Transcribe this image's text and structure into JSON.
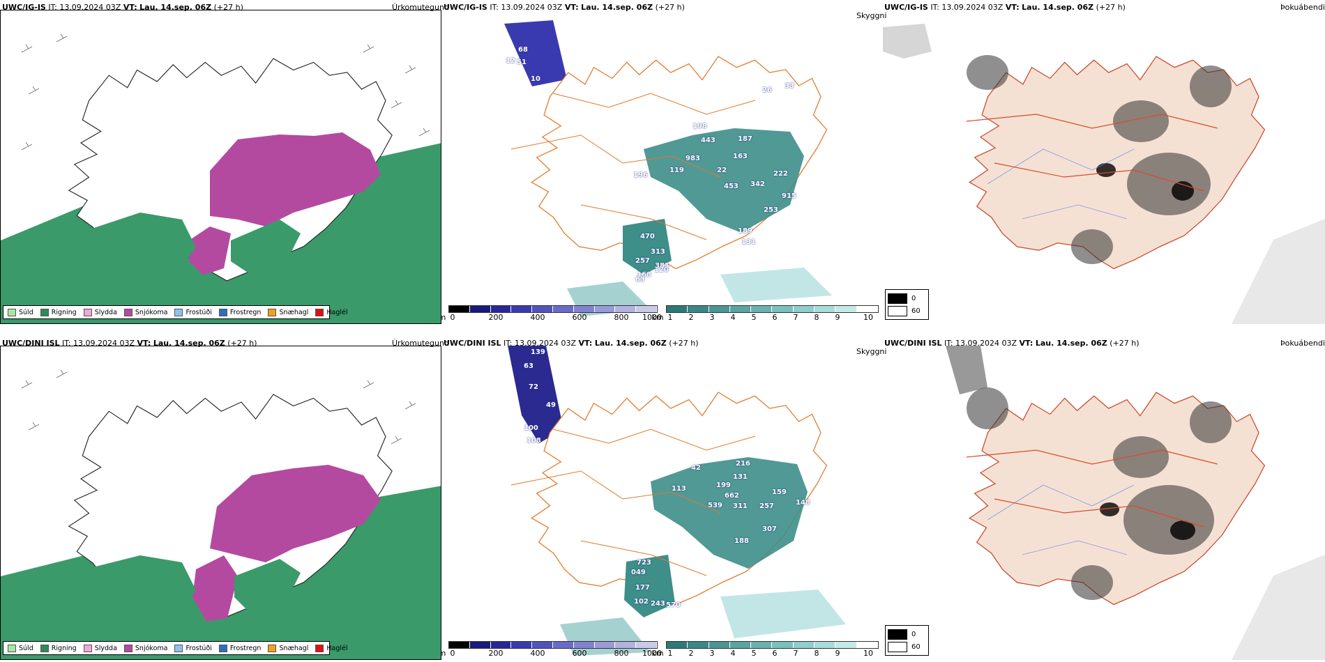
{
  "rows": [
    {
      "model": "UWC/IG-IS",
      "it": "IT: 13.09.2024 03Z",
      "vt_label": "VT:",
      "vt": "Lau. 14.sep. 06Z",
      "lead": "(+27 h)",
      "panels": {
        "precip_title": "Úrkomutegund",
        "cloud_title": "Skyggni",
        "fog_title": "Þokuábendi"
      },
      "visibility_labels": [
        "68",
        "51",
        "12",
        "10",
        "26",
        "33",
        "198",
        "187",
        "443",
        "983",
        "163",
        "196",
        "119",
        "22",
        "222",
        "453",
        "342",
        "915",
        "253",
        "189",
        "131",
        "470",
        "313",
        "257",
        "120",
        "168",
        "381",
        "63"
      ]
    },
    {
      "model": "UWC/DINI ISL",
      "it": "IT: 13.09.2024 03Z",
      "vt_label": "VT:",
      "vt": "Lau. 14.sep. 06Z",
      "lead": "(+27 h)",
      "panels": {
        "precip_title": "Úrkomutegund",
        "cloud_title": "Skyggni",
        "fog_title": "Þokuábendi"
      },
      "visibility_labels": [
        "139",
        "63",
        "72",
        "49",
        "100",
        "108",
        "216",
        "131",
        "113",
        "42",
        "199",
        "662",
        "311",
        "159",
        "539",
        "257",
        "148",
        "188",
        "307",
        "723",
        "049",
        "177",
        "243",
        "570",
        "102"
      ]
    }
  ],
  "precip_legend": [
    {
      "label": "Súld",
      "color": "#a5e8a0"
    },
    {
      "label": "Rigning",
      "color": "#2e8b57"
    },
    {
      "label": "Slydda",
      "color": "#f0a8d8"
    },
    {
      "label": "Snjókoma",
      "color": "#b44aa0"
    },
    {
      "label": "Frostúði",
      "color": "#8ec2ee"
    },
    {
      "label": "Frostregn",
      "color": "#2c6fc0"
    },
    {
      "label": "Snæhagl",
      "color": "#f0a020"
    },
    {
      "label": "Haglél",
      "color": "#e01010"
    }
  ],
  "ceiling_bar": {
    "unit": "m",
    "ticks": [
      "0",
      "200",
      "400",
      "600",
      "800",
      "1000"
    ],
    "colors": [
      "#000000",
      "#1a1a7a",
      "#27279a",
      "#3a3ab0",
      "#5252c0",
      "#6a6ac8",
      "#8282d0",
      "#9a9ad8",
      "#b2b2e0",
      "#cacae8"
    ]
  },
  "visibility_bar": {
    "unit": "km",
    "ticks": [
      "1",
      "2",
      "3",
      "4",
      "5",
      "6",
      "7",
      "8",
      "9",
      "10"
    ],
    "colors": [
      "#2a7a78",
      "#3a8886",
      "#4a9694",
      "#5aa4a2",
      "#6ab2b0",
      "#7ac0be",
      "#8fcecc",
      "#a8dcda",
      "#c4eae8",
      "#ffffff"
    ]
  },
  "fog_legend": [
    {
      "label": "0",
      "color": "#000000"
    },
    {
      "label": "60",
      "color": "#ffffff"
    }
  ]
}
